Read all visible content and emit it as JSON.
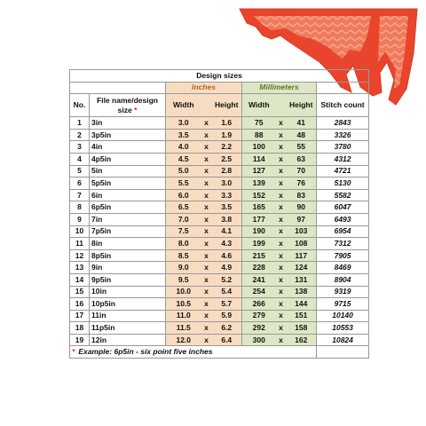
{
  "title": "Design sizes",
  "columns": {
    "no": "No.",
    "name": "File name/design size",
    "asterisk": "*",
    "inches": "Inches",
    "millimeters": "Millimeters",
    "width": "Width",
    "height": "Height",
    "stitch": "Stitch count"
  },
  "separator": "x",
  "rows": [
    [
      "1",
      "3in",
      "3.0",
      "1.6",
      "75",
      "41",
      "2843"
    ],
    [
      "2",
      "3p5in",
      "3.5",
      "1.9",
      "88",
      "48",
      "3326"
    ],
    [
      "3",
      "4in",
      "4.0",
      "2.2",
      "100",
      "55",
      "3780"
    ],
    [
      "4",
      "4p5in",
      "4.5",
      "2.5",
      "114",
      "63",
      "4312"
    ],
    [
      "5",
      "5in",
      "5.0",
      "2.8",
      "127",
      "70",
      "4721"
    ],
    [
      "6",
      "5p5in",
      "5.5",
      "3.0",
      "139",
      "76",
      "5130"
    ],
    [
      "7",
      "6in",
      "6.0",
      "3.3",
      "152",
      "83",
      "5582"
    ],
    [
      "8",
      "6p5in",
      "6.5",
      "3.5",
      "165",
      "90",
      "6047"
    ],
    [
      "9",
      "7in",
      "7.0",
      "3.8",
      "177",
      "97",
      "6493"
    ],
    [
      "10",
      "7p5in",
      "7.5",
      "4.1",
      "190",
      "103",
      "6954"
    ],
    [
      "11",
      "8in",
      "8.0",
      "4.3",
      "199",
      "108",
      "7312"
    ],
    [
      "12",
      "8p5in",
      "8.5",
      "4.6",
      "215",
      "117",
      "7905"
    ],
    [
      "13",
      "9in",
      "9.0",
      "4.9",
      "228",
      "124",
      "8469"
    ],
    [
      "14",
      "9p5in",
      "9.5",
      "5.2",
      "241",
      "131",
      "8904"
    ],
    [
      "15",
      "10in",
      "10.0",
      "5.4",
      "254",
      "138",
      "9319"
    ],
    [
      "16",
      "10p5in",
      "10.5",
      "5.7",
      "266",
      "144",
      "9715"
    ],
    [
      "17",
      "11in",
      "11.0",
      "5.9",
      "279",
      "151",
      "10140"
    ],
    [
      "18",
      "11p5in",
      "11.5",
      "6.2",
      "292",
      "158",
      "10553"
    ],
    [
      "19",
      "12in",
      "12.0",
      "6.4",
      "300",
      "162",
      "10824"
    ]
  ],
  "footnote": {
    "asterisk": "*",
    "text": "Example: 6p5in - six point five inches"
  }
}
